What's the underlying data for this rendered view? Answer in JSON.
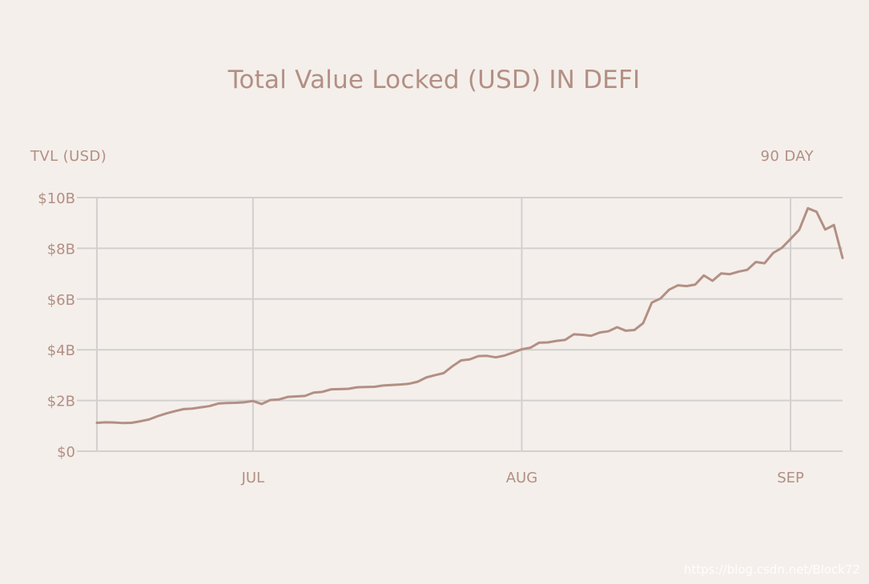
{
  "chart_data": {
    "type": "line",
    "title": "Total Value Locked (USD) IN DEFI",
    "ylabel": "TVL (USD)",
    "range_label": "90 DAY",
    "x_ticks": [
      "JUL",
      "AUG",
      "SEP"
    ],
    "y_ticks": [
      "$0",
      "$2B",
      "$4B",
      "$6B",
      "$8B",
      "$10B"
    ],
    "ylim": [
      0,
      10
    ],
    "x_range": [
      "2020-06-13",
      "2020-09-07"
    ],
    "grid": {
      "horizontal": true,
      "vertical": true
    },
    "colors": {
      "background": "#f4efeb",
      "line": "#b38f84",
      "text": "#b38f84",
      "grid": "#d2d0cf"
    },
    "series": [
      {
        "x": [
          "2020-06-13",
          "2020-06-14",
          "2020-06-15",
          "2020-06-16",
          "2020-06-17",
          "2020-06-18",
          "2020-06-19",
          "2020-06-20",
          "2020-06-21",
          "2020-06-22",
          "2020-06-23",
          "2020-06-24",
          "2020-06-25",
          "2020-06-26",
          "2020-06-27",
          "2020-06-28",
          "2020-06-29",
          "2020-06-30",
          "2020-07-01",
          "2020-07-02",
          "2020-07-03",
          "2020-07-04",
          "2020-07-05",
          "2020-07-06",
          "2020-07-07",
          "2020-07-08",
          "2020-07-09",
          "2020-07-10",
          "2020-07-11",
          "2020-07-12",
          "2020-07-13",
          "2020-07-14",
          "2020-07-15",
          "2020-07-16",
          "2020-07-17",
          "2020-07-18",
          "2020-07-19",
          "2020-07-20",
          "2020-07-21",
          "2020-07-22",
          "2020-07-23",
          "2020-07-24",
          "2020-07-25",
          "2020-07-26",
          "2020-07-27",
          "2020-07-28",
          "2020-07-29",
          "2020-07-30",
          "2020-07-31",
          "2020-08-01",
          "2020-08-02",
          "2020-08-03",
          "2020-08-04",
          "2020-08-05",
          "2020-08-06",
          "2020-08-07",
          "2020-08-08",
          "2020-08-09",
          "2020-08-10",
          "2020-08-11",
          "2020-08-12",
          "2020-08-13",
          "2020-08-14",
          "2020-08-15",
          "2020-08-16",
          "2020-08-17",
          "2020-08-18",
          "2020-08-19",
          "2020-08-20",
          "2020-08-21",
          "2020-08-22",
          "2020-08-23",
          "2020-08-24",
          "2020-08-25",
          "2020-08-26",
          "2020-08-27",
          "2020-08-28",
          "2020-08-29",
          "2020-08-30",
          "2020-08-31",
          "2020-09-01",
          "2020-09-02",
          "2020-09-03",
          "2020-09-04",
          "2020-09-05",
          "2020-09-06",
          "2020-09-07"
        ],
        "values": [
          1.12,
          1.14,
          1.13,
          1.11,
          1.12,
          1.18,
          1.25,
          1.38,
          1.49,
          1.58,
          1.66,
          1.68,
          1.73,
          1.78,
          1.88,
          1.9,
          1.91,
          1.93,
          1.98,
          1.86,
          2.02,
          2.04,
          2.14,
          2.16,
          2.18,
          2.31,
          2.34,
          2.44,
          2.45,
          2.46,
          2.52,
          2.53,
          2.54,
          2.59,
          2.61,
          2.63,
          2.66,
          2.74,
          2.91,
          3.0,
          3.08,
          3.35,
          3.58,
          3.62,
          3.75,
          3.76,
          3.7,
          3.77,
          3.89,
          4.02,
          4.08,
          4.28,
          4.29,
          4.35,
          4.39,
          4.61,
          4.59,
          4.55,
          4.68,
          4.73,
          4.89,
          4.75,
          4.78,
          5.05,
          5.86,
          6.02,
          6.37,
          6.54,
          6.51,
          6.57,
          6.93,
          6.72,
          7.01,
          6.98,
          7.08,
          7.15,
          7.46,
          7.41,
          7.82,
          8.02,
          8.37,
          8.73,
          9.58,
          9.44,
          8.74,
          8.92,
          7.62
        ]
      }
    ]
  },
  "watermark": "https://blog.csdn.net/Block72"
}
